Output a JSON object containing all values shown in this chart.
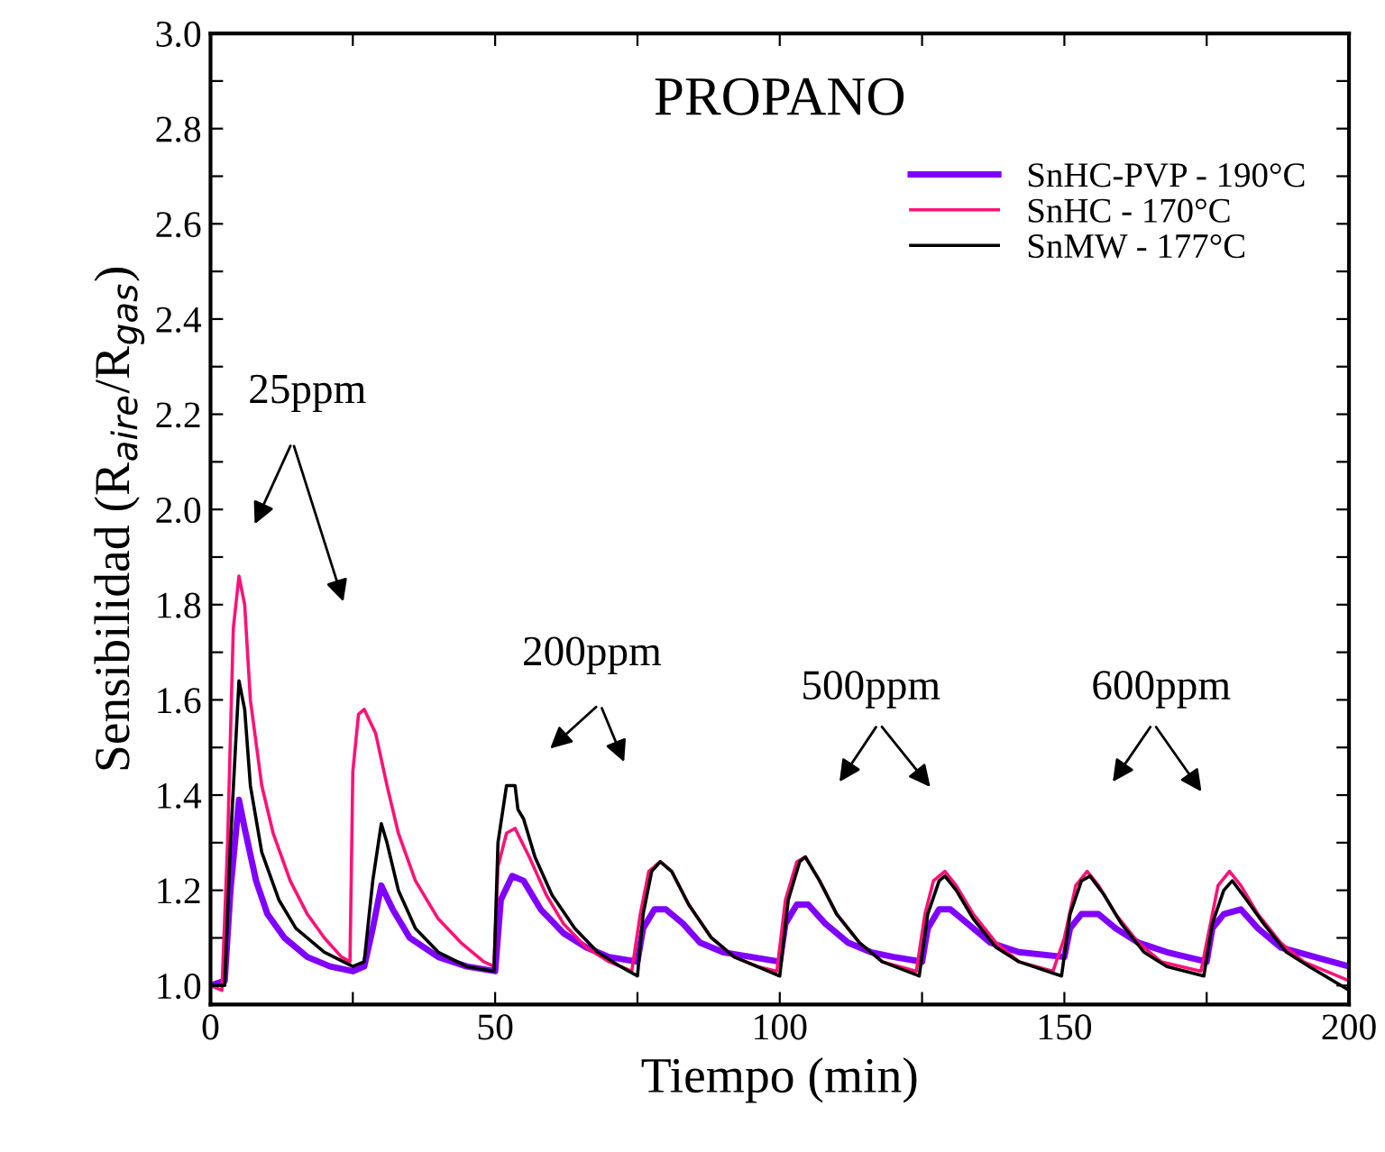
{
  "chart_data": {
    "type": "line",
    "title": "PROPANO",
    "xlabel": "Tiempo (min)",
    "ylabel": "Sensibilidad (R$_{aire}$/R$_{gas}$)",
    "xlim": [
      0,
      200
    ],
    "ylim": [
      0.96,
      3.0
    ],
    "xticks": [
      0,
      {
        "value": 25,
        "label": null
      },
      50,
      {
        "value": 75,
        "label": null
      },
      100,
      {
        "value": 125,
        "label": null
      },
      150,
      {
        "value": 175,
        "label": null
      },
      200
    ],
    "yticks": [
      {
        "value": 1.0,
        "label": "1.0"
      },
      {
        "value": 1.1,
        "label": null
      },
      1.2,
      {
        "value": 1.3,
        "label": null
      },
      1.4,
      {
        "value": 1.5,
        "label": null
      },
      1.6,
      {
        "value": 1.7,
        "label": null
      },
      1.8,
      {
        "value": 1.9,
        "label": null
      },
      {
        "value": 2.0,
        "label": "2.0"
      },
      {
        "value": 2.1,
        "label": null
      },
      2.2,
      {
        "value": 2.3,
        "label": null
      },
      2.4,
      {
        "value": 2.5,
        "label": null
      },
      2.6,
      {
        "value": 2.7,
        "label": null
      },
      2.8,
      {
        "value": 2.9,
        "label": null
      },
      {
        "value": 3.0,
        "label": "3.0"
      }
    ],
    "grid": false,
    "legend": "top right",
    "annotations": [
      "25ppm",
      "200ppm",
      "500ppm",
      "600ppm"
    ],
    "series": [
      {
        "name": "SnHC-PVP - 190°C",
        "color": "#8000ff",
        "x": [
          0,
          2.5,
          3.5,
          5,
          6,
          8,
          10,
          13,
          17,
          21,
          25,
          27,
          28.5,
          30,
          32,
          35,
          40,
          45,
          50,
          51,
          53,
          55,
          58,
          62,
          66,
          70,
          75,
          76,
          78,
          80,
          83,
          86,
          90,
          95,
          100,
          101,
          103,
          105,
          108,
          112,
          116,
          120,
          125,
          126,
          128,
          130,
          133,
          137,
          142,
          150,
          151,
          153,
          156,
          159,
          163,
          168,
          175,
          176,
          178,
          181,
          184,
          188,
          194,
          200
        ],
        "values": [
          1.0,
          1.01,
          1.2,
          1.39,
          1.33,
          1.22,
          1.15,
          1.1,
          1.06,
          1.04,
          1.03,
          1.04,
          1.12,
          1.21,
          1.16,
          1.1,
          1.06,
          1.04,
          1.03,
          1.18,
          1.23,
          1.22,
          1.16,
          1.11,
          1.08,
          1.06,
          1.05,
          1.12,
          1.16,
          1.16,
          1.13,
          1.09,
          1.07,
          1.06,
          1.05,
          1.13,
          1.17,
          1.17,
          1.13,
          1.09,
          1.07,
          1.06,
          1.05,
          1.12,
          1.16,
          1.16,
          1.13,
          1.09,
          1.07,
          1.06,
          1.12,
          1.15,
          1.15,
          1.12,
          1.09,
          1.07,
          1.05,
          1.12,
          1.15,
          1.16,
          1.12,
          1.08,
          1.06,
          1.04
        ]
      },
      {
        "name": "SnHC - 170°C",
        "color": "#ff1177",
        "x": [
          0,
          2,
          3,
          4,
          5,
          6,
          7,
          9,
          11,
          14,
          17,
          20,
          23,
          24.5,
          25,
          26,
          27,
          29,
          31,
          33,
          36,
          40,
          44,
          48,
          49.8,
          50.5,
          52,
          53.5,
          56,
          59,
          62,
          66,
          70,
          74,
          75.5,
          77,
          79,
          81,
          84,
          88,
          92,
          96,
          99.5,
          101,
          103,
          104.5,
          107,
          110,
          114,
          118,
          124,
          125.5,
          127,
          129,
          131,
          134,
          138,
          142,
          148,
          150,
          152,
          154,
          156,
          159,
          163,
          167,
          174,
          175.5,
          177,
          179,
          181,
          184,
          188,
          192,
          200
        ],
        "values": [
          1.0,
          0.99,
          1.3,
          1.75,
          1.86,
          1.8,
          1.6,
          1.42,
          1.32,
          1.22,
          1.15,
          1.1,
          1.06,
          1.05,
          1.45,
          1.57,
          1.58,
          1.53,
          1.42,
          1.32,
          1.22,
          1.14,
          1.09,
          1.05,
          1.04,
          1.25,
          1.32,
          1.33,
          1.27,
          1.19,
          1.13,
          1.08,
          1.05,
          1.03,
          1.15,
          1.24,
          1.26,
          1.24,
          1.17,
          1.1,
          1.06,
          1.04,
          1.03,
          1.18,
          1.26,
          1.27,
          1.22,
          1.15,
          1.09,
          1.05,
          1.03,
          1.15,
          1.22,
          1.24,
          1.21,
          1.15,
          1.09,
          1.05,
          1.03,
          1.1,
          1.21,
          1.24,
          1.21,
          1.15,
          1.09,
          1.05,
          1.03,
          1.12,
          1.21,
          1.24,
          1.21,
          1.15,
          1.09,
          1.05,
          1.01
        ]
      },
      {
        "name": "SnMW - 177°C",
        "color": "#000000",
        "x": [
          0,
          2.5,
          3.5,
          5,
          6,
          7,
          9,
          12,
          15,
          20,
          25,
          27,
          28.5,
          30,
          31,
          33,
          36,
          40,
          45,
          49.8,
          50.5,
          52,
          53.5,
          54,
          55,
          57,
          60,
          64,
          68,
          72,
          75,
          76,
          77.5,
          79,
          81,
          84,
          88,
          92,
          96,
          100,
          101.5,
          103.5,
          104.5,
          107,
          110,
          114,
          118,
          124.5,
          126,
          128,
          129,
          131,
          134,
          138,
          142,
          149.5,
          151,
          153,
          154.5,
          157,
          160,
          164,
          168,
          174.5,
          176,
          178,
          179.5,
          182,
          185,
          189,
          193,
          200
        ],
        "values": [
          1.0,
          1.0,
          1.3,
          1.64,
          1.58,
          1.42,
          1.28,
          1.18,
          1.12,
          1.07,
          1.04,
          1.05,
          1.22,
          1.34,
          1.3,
          1.2,
          1.12,
          1.07,
          1.04,
          1.03,
          1.3,
          1.42,
          1.42,
          1.37,
          1.35,
          1.27,
          1.19,
          1.12,
          1.07,
          1.04,
          1.02,
          1.15,
          1.24,
          1.26,
          1.24,
          1.17,
          1.1,
          1.06,
          1.04,
          1.02,
          1.18,
          1.26,
          1.27,
          1.22,
          1.15,
          1.09,
          1.05,
          1.02,
          1.15,
          1.22,
          1.23,
          1.2,
          1.14,
          1.08,
          1.05,
          1.02,
          1.15,
          1.22,
          1.23,
          1.19,
          1.13,
          1.07,
          1.04,
          1.02,
          1.13,
          1.2,
          1.22,
          1.18,
          1.13,
          1.07,
          1.04,
          0.99
        ]
      }
    ]
  }
}
